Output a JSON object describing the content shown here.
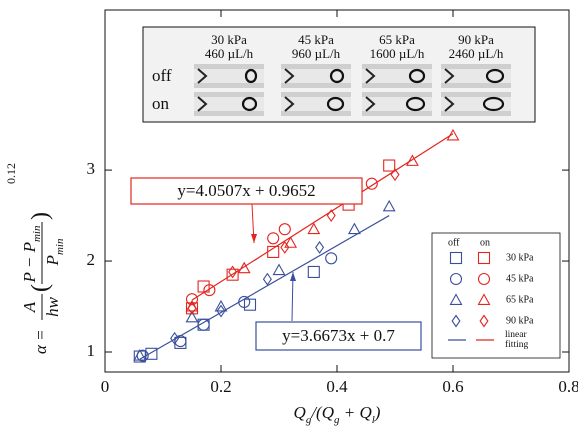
{
  "chart_data": {
    "type": "scatter",
    "xlabel": [
      {
        "text": "Q"
      },
      {
        "text": "g",
        "sub": true
      },
      {
        "text": "/(Q"
      },
      {
        "text": "g",
        "sub": true
      },
      {
        "text": " + Q"
      },
      {
        "text": "l",
        "sub": true
      },
      {
        "text": ")"
      }
    ],
    "ylabel": {
      "lhs": "α =",
      "A": "A",
      "hw": "hw",
      "open": "(",
      "num": "P − P",
      "num_sub": "min",
      "den": "P",
      "den_sub": "min",
      "close": ")",
      "exponent": "0.12"
    },
    "xlim": [
      0,
      0.8
    ],
    "ylim": [
      0.78,
      4.76
    ],
    "xticks": [
      0,
      0.2,
      0.4,
      0.6,
      0.8
    ],
    "yticks": [
      1,
      2,
      3
    ],
    "groups": [
      {
        "name": "off",
        "color": "#3a4f9c"
      },
      {
        "name": "on",
        "color": "#e3261f"
      }
    ],
    "series": [
      {
        "name": "30 kPa",
        "marker": "square",
        "off": {
          "x": [
            0.06,
            0.08,
            0.13,
            0.17,
            0.25,
            0.36
          ],
          "y": [
            0.95,
            0.98,
            1.1,
            1.3,
            1.52,
            1.88
          ]
        },
        "on": {
          "x": [
            0.15,
            0.17,
            0.22,
            0.29,
            0.42,
            0.49
          ],
          "y": [
            1.48,
            1.72,
            1.85,
            2.1,
            2.62,
            3.05
          ]
        }
      },
      {
        "name": "45 kPa",
        "marker": "circle",
        "off": {
          "x": [
            0.065,
            0.13,
            0.17,
            0.24,
            0.39
          ],
          "y": [
            0.96,
            1.12,
            1.3,
            1.55,
            2.03
          ]
        },
        "on": {
          "x": [
            0.15,
            0.18,
            0.29,
            0.31,
            0.46
          ],
          "y": [
            1.58,
            1.68,
            2.25,
            2.35,
            2.85
          ]
        }
      },
      {
        "name": "65 kPa",
        "marker": "triangle",
        "off": {
          "x": [
            0.06,
            0.15,
            0.2,
            0.3,
            0.43,
            0.49
          ],
          "y": [
            0.96,
            1.38,
            1.5,
            1.9,
            2.35,
            2.6
          ]
        },
        "on": {
          "x": [
            0.15,
            0.24,
            0.32,
            0.36,
            0.53,
            0.6
          ],
          "y": [
            1.5,
            1.92,
            2.2,
            2.35,
            3.1,
            3.38
          ]
        }
      },
      {
        "name": "90 kPa",
        "marker": "diamond",
        "off": {
          "x": [
            0.12,
            0.2,
            0.28,
            0.37
          ],
          "y": [
            1.15,
            1.45,
            1.8,
            2.15
          ]
        },
        "on": {
          "x": [
            0.15,
            0.22,
            0.31,
            0.39,
            0.5
          ],
          "y": [
            1.48,
            1.88,
            2.15,
            2.5,
            2.95
          ]
        }
      }
    ],
    "fits": [
      {
        "label": "y=3.6673x + 0.7",
        "color": "#3a4f9c",
        "x": [
          0.06,
          0.49
        ],
        "y": [
          0.92,
          2.5
        ]
      },
      {
        "label": "y=4.0507x + 0.9652",
        "color": "#e3261f",
        "x": [
          0.15,
          0.6
        ],
        "y": [
          1.57,
          3.4
        ]
      }
    ],
    "fit_legend": "linear fitting",
    "inset": {
      "rows": [
        "off",
        "on"
      ],
      "columns": [
        {
          "pressure": "30 kPa",
          "flow": "460 µL/h"
        },
        {
          "pressure": "45 kPa",
          "flow": "960 µL/h"
        },
        {
          "pressure": "65 kPa",
          "flow": "1600 µL/h"
        },
        {
          "pressure": "90 kPa",
          "flow": "2460 µL/h"
        }
      ]
    }
  }
}
